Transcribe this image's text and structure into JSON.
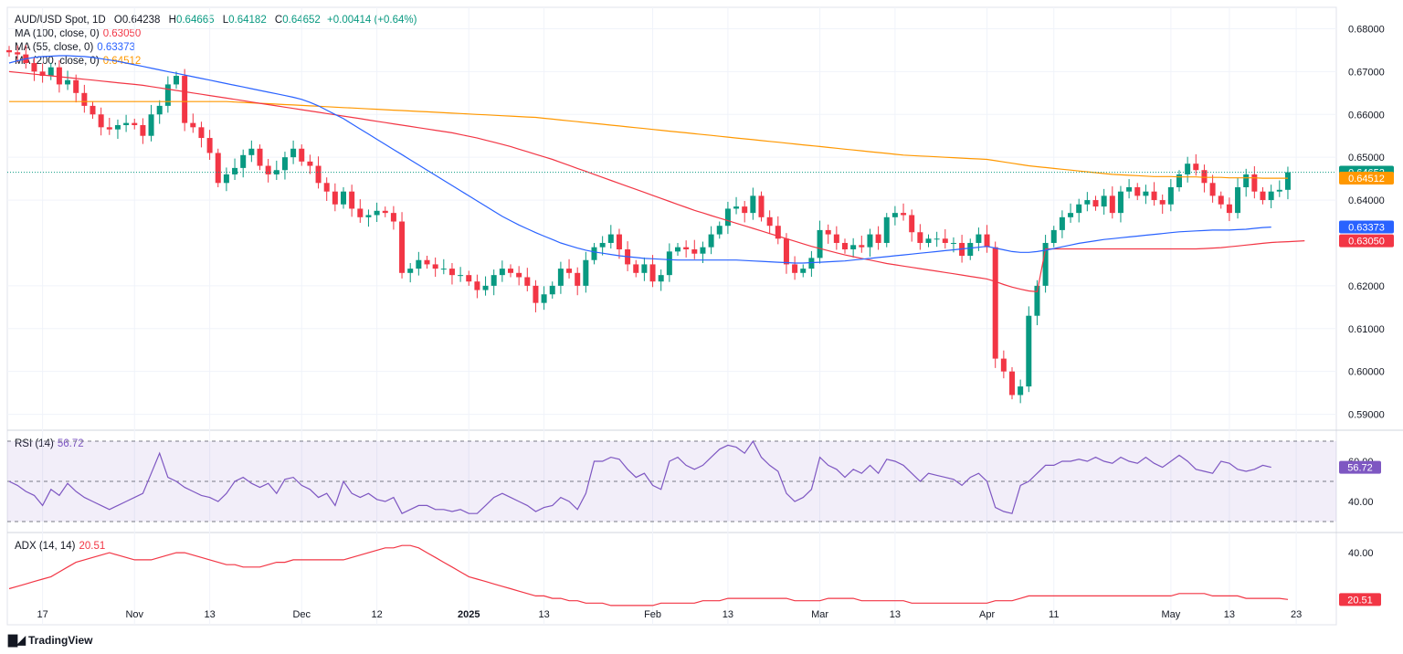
{
  "header": {
    "symbol": "AUD/USD Spot, 1D",
    "open_label": "O",
    "open": "0.64238",
    "high_label": "H",
    "high": "0.64665",
    "low_label": "L",
    "low": "0.64182",
    "close_label": "C",
    "close": "0.64652",
    "change": "+0.00414 (+0.64%)"
  },
  "ma100": {
    "label": "MA (100, close, 0)",
    "value": "0.63050",
    "color": "#f23645"
  },
  "ma55": {
    "label": "MA (55, close, 0)",
    "value": "0.63373",
    "color": "#2962ff"
  },
  "ma200": {
    "label": "MA (200, close, 0)",
    "value": "0.64512",
    "color": "#ff9800"
  },
  "rsi": {
    "label": "RSI (14)",
    "value": "56.72",
    "color": "#7e57c2"
  },
  "adx": {
    "label": "ADX (14, 14)",
    "value": "20.51",
    "color": "#f23645"
  },
  "brand": "TradingView",
  "colors": {
    "up": "#089981",
    "down": "#f23645",
    "grid": "#f0f3fa"
  },
  "chart_data": [
    {
      "type": "candlestick",
      "title": "AUD/USD Spot, 1D",
      "ylim": [
        0.5865,
        0.685
      ],
      "y_ticks": [
        "0.68000",
        "0.67000",
        "0.66000",
        "0.65000",
        "0.64000",
        "0.62000",
        "0.61000",
        "0.60000",
        "0.59000"
      ],
      "price_badges": [
        "0.64652",
        "0.64512",
        "0.63373",
        "0.63050"
      ],
      "x_ticks": [
        {
          "label": "17",
          "idx": 4
        },
        {
          "label": "Nov",
          "idx": 15
        },
        {
          "label": "13",
          "idx": 24
        },
        {
          "label": "Dec",
          "idx": 35
        },
        {
          "label": "12",
          "idx": 44
        },
        {
          "label": "2025",
          "idx": 55
        },
        {
          "label": "13",
          "idx": 64
        },
        {
          "label": "Feb",
          "idx": 77
        },
        {
          "label": "13",
          "idx": 86
        },
        {
          "label": "Mar",
          "idx": 97
        },
        {
          "label": "13",
          "idx": 106
        },
        {
          "label": "Apr",
          "idx": 117
        },
        {
          "label": "11",
          "idx": 125
        },
        {
          "label": "May",
          "idx": 139
        },
        {
          "label": "13",
          "idx": 146
        },
        {
          "label": "23",
          "idx": 154
        }
      ],
      "close": [
        0.6745,
        0.674,
        0.672,
        0.67,
        0.669,
        0.671,
        0.667,
        0.668,
        0.665,
        0.662,
        0.66,
        0.657,
        0.6565,
        0.6575,
        0.658,
        0.6575,
        0.655,
        0.66,
        0.662,
        0.667,
        0.669,
        0.658,
        0.657,
        0.6545,
        0.651,
        0.644,
        0.646,
        0.6475,
        0.6505,
        0.652,
        0.648,
        0.646,
        0.647,
        0.65,
        0.652,
        0.649,
        0.648,
        0.644,
        0.642,
        0.639,
        0.642,
        0.638,
        0.636,
        0.6365,
        0.6375,
        0.637,
        0.635,
        0.623,
        0.624,
        0.626,
        0.625,
        0.624,
        0.624,
        0.6225,
        0.6225,
        0.621,
        0.619,
        0.62,
        0.6225,
        0.624,
        0.623,
        0.622,
        0.62,
        0.616,
        0.618,
        0.62,
        0.624,
        0.623,
        0.62,
        0.626,
        0.629,
        0.63,
        0.632,
        0.6285,
        0.625,
        0.623,
        0.625,
        0.621,
        0.6225,
        0.628,
        0.629,
        0.6285,
        0.6275,
        0.629,
        0.632,
        0.634,
        0.638,
        0.6385,
        0.637,
        0.641,
        0.636,
        0.634,
        0.631,
        0.625,
        0.623,
        0.624,
        0.6265,
        0.633,
        0.632,
        0.63,
        0.6285,
        0.6295,
        0.629,
        0.632,
        0.63,
        0.636,
        0.637,
        0.6365,
        0.6325,
        0.63,
        0.631,
        0.631,
        0.63,
        0.63,
        0.627,
        0.63,
        0.632,
        0.629,
        0.603,
        0.6,
        0.5945,
        0.5965,
        0.613,
        0.62,
        0.63,
        0.633,
        0.636,
        0.637,
        0.639,
        0.64,
        0.6385,
        0.641,
        0.637,
        0.642,
        0.643,
        0.641,
        0.642,
        0.64,
        0.639,
        0.643,
        0.646,
        0.6485,
        0.647,
        0.644,
        0.641,
        0.639,
        0.637,
        0.643,
        0.646,
        0.642,
        0.64,
        0.642,
        0.6424,
        0.6465
      ],
      "rsi_levels": [
        70,
        50,
        30
      ],
      "rsi_ticks": [
        "60.00",
        "40.00"
      ],
      "rsi": [
        50,
        48,
        45,
        43,
        38,
        46,
        43,
        49,
        45,
        42,
        40,
        38,
        36,
        38,
        40,
        42,
        44,
        54,
        64,
        52,
        50,
        47,
        45,
        43,
        42,
        40,
        44,
        50,
        52,
        49,
        47,
        49,
        44,
        51,
        52,
        48,
        46,
        42,
        44,
        38,
        50,
        44,
        42,
        44,
        41,
        40,
        42,
        34,
        36,
        38,
        38,
        36,
        36,
        35,
        36,
        34,
        34,
        38,
        42,
        44,
        42,
        40,
        38,
        35,
        37,
        38,
        42,
        40,
        36,
        44,
        60,
        60,
        62,
        61,
        56,
        52,
        54,
        48,
        46,
        60,
        62,
        58,
        56,
        58,
        62,
        66,
        68,
        67,
        64,
        70,
        62,
        58,
        55,
        44,
        40,
        42,
        46,
        62,
        58,
        56,
        52,
        56,
        54,
        58,
        54,
        61,
        60,
        58,
        54,
        50,
        54,
        53,
        52,
        51,
        48,
        52,
        54,
        50,
        37,
        35,
        34,
        48,
        50,
        54,
        58,
        58,
        60,
        60,
        61,
        60,
        62,
        60,
        59,
        62,
        60,
        59,
        62,
        59,
        57,
        60,
        63,
        60,
        56,
        55,
        54,
        60,
        59,
        56,
        55,
        56,
        58,
        57
      ],
      "adx_ticks": [
        "40.00"
      ],
      "adx": [
        25,
        26,
        27,
        28,
        29,
        30,
        32,
        34,
        36,
        37,
        38,
        39,
        40,
        39,
        38,
        37,
        37,
        37,
        38,
        39,
        40,
        40,
        39,
        38,
        37,
        36,
        35,
        35,
        34,
        34,
        34,
        35,
        36,
        36,
        37,
        37,
        37,
        37,
        37,
        37,
        37,
        38,
        39,
        40,
        41,
        42,
        42,
        43,
        43,
        42,
        40,
        38,
        36,
        34,
        32,
        30,
        29,
        28,
        27,
        26,
        25,
        24,
        23,
        22,
        22,
        21,
        21,
        20,
        20,
        19,
        19,
        19,
        18,
        18,
        18,
        18,
        18,
        18,
        19,
        19,
        19,
        19,
        19,
        20,
        20,
        20,
        21,
        21,
        21,
        21,
        21,
        21,
        21,
        21,
        20,
        20,
        20,
        20,
        21,
        21,
        21,
        21,
        20,
        20,
        20,
        20,
        20,
        20,
        19,
        19,
        19,
        19,
        19,
        19,
        19,
        19,
        19,
        19,
        20,
        20,
        20,
        21,
        22,
        22,
        22,
        22,
        22,
        22,
        22,
        22,
        22,
        22,
        22,
        22,
        22,
        22,
        22,
        22,
        22,
        22,
        23,
        23,
        23,
        23,
        22,
        22,
        22,
        22,
        21,
        21,
        21,
        21,
        21,
        20.51
      ],
      "ma100": [
        0.67,
        0.6698,
        0.6696,
        0.6694,
        0.6692,
        0.669,
        0.6688,
        0.6686,
        0.6684,
        0.6682,
        0.668,
        0.6678,
        0.6676,
        0.6674,
        0.6672,
        0.667,
        0.6668,
        0.6665,
        0.6662,
        0.6659,
        0.6656,
        0.6653,
        0.665,
        0.6647,
        0.6644,
        0.6641,
        0.6638,
        0.6635,
        0.6632,
        0.6629,
        0.6626,
        0.6623,
        0.662,
        0.6617,
        0.6614,
        0.6611,
        0.6608,
        0.6605,
        0.6602,
        0.6599,
        0.6596,
        0.6593,
        0.659,
        0.6587,
        0.6584,
        0.6581,
        0.6578,
        0.6575,
        0.6572,
        0.6569,
        0.6566,
        0.6563,
        0.656,
        0.6557,
        0.6553,
        0.6549,
        0.6545,
        0.654,
        0.6535,
        0.653,
        0.6525,
        0.6519,
        0.6513,
        0.6507,
        0.6501,
        0.6495,
        0.6488,
        0.6481,
        0.6474,
        0.6467,
        0.646,
        0.6453,
        0.6446,
        0.6439,
        0.6432,
        0.6425,
        0.6418,
        0.6411,
        0.6404,
        0.6397,
        0.639,
        0.6383,
        0.6376,
        0.637,
        0.6364,
        0.6358,
        0.6352,
        0.6346,
        0.634,
        0.6334,
        0.6328,
        0.6322,
        0.6316,
        0.631,
        0.6304,
        0.6298,
        0.6292,
        0.6287,
        0.6282,
        0.6277,
        0.6272,
        0.6268,
        0.6264,
        0.626,
        0.6256,
        0.6252,
        0.6249,
        0.6246,
        0.6243,
        0.624,
        0.6237,
        0.6234,
        0.6231,
        0.6228,
        0.6225,
        0.6222,
        0.6219,
        0.6216,
        0.621,
        0.6203,
        0.6197,
        0.6192,
        0.6188,
        0.6186,
        0.6286,
        0.6286,
        0.6286,
        0.6286,
        0.6286,
        0.6286,
        0.6286,
        0.6286,
        0.6286,
        0.6286,
        0.6286,
        0.6286,
        0.6286,
        0.6286,
        0.6286,
        0.6286,
        0.6286,
        0.6286,
        0.6286,
        0.6287,
        0.6288,
        0.6289,
        0.6291,
        0.6293,
        0.6295,
        0.6297,
        0.6299,
        0.6301,
        0.6302,
        0.6303,
        0.6304,
        0.6305
      ],
      "ma55": [
        0.672,
        0.6725,
        0.673,
        0.6733,
        0.6735,
        0.6736,
        0.6737,
        0.6737,
        0.6736,
        0.6735,
        0.6733,
        0.673,
        0.6727,
        0.6724,
        0.672,
        0.6716,
        0.6712,
        0.6708,
        0.6704,
        0.67,
        0.6696,
        0.6692,
        0.6688,
        0.6684,
        0.668,
        0.6676,
        0.6672,
        0.6668,
        0.6664,
        0.666,
        0.6656,
        0.6652,
        0.6648,
        0.6644,
        0.664,
        0.6635,
        0.6628,
        0.662,
        0.661,
        0.66,
        0.659,
        0.6578,
        0.6566,
        0.6554,
        0.6542,
        0.653,
        0.6518,
        0.6506,
        0.6494,
        0.6482,
        0.647,
        0.6458,
        0.6446,
        0.6434,
        0.6422,
        0.641,
        0.6398,
        0.6386,
        0.6374,
        0.6362,
        0.6352,
        0.6342,
        0.6333,
        0.6324,
        0.6316,
        0.6308,
        0.63,
        0.6294,
        0.6288,
        0.6283,
        0.6279,
        0.6276,
        0.6273,
        0.627,
        0.6268,
        0.6266,
        0.6264,
        0.6263,
        0.6262,
        0.6261,
        0.626,
        0.626,
        0.626,
        0.626,
        0.626,
        0.626,
        0.626,
        0.626,
        0.6259,
        0.6258,
        0.6257,
        0.6256,
        0.6255,
        0.6254,
        0.6253,
        0.6253,
        0.6254,
        0.6255,
        0.6256,
        0.6257,
        0.6258,
        0.626,
        0.6262,
        0.6264,
        0.6266,
        0.6268,
        0.627,
        0.6272,
        0.6274,
        0.6276,
        0.6278,
        0.628,
        0.6282,
        0.6284,
        0.6286,
        0.6288,
        0.629,
        0.6292,
        0.6288,
        0.6284,
        0.628,
        0.6278,
        0.6278,
        0.628,
        0.6283,
        0.6287,
        0.6291,
        0.6295,
        0.6299,
        0.6302,
        0.6305,
        0.6308,
        0.631,
        0.6312,
        0.6314,
        0.6316,
        0.6318,
        0.632,
        0.6322,
        0.6324,
        0.6326,
        0.6327,
        0.6328,
        0.6329,
        0.633,
        0.633,
        0.633,
        0.6331,
        0.6332,
        0.6334,
        0.6336,
        0.6337
      ],
      "ma200": [
        0.663,
        0.663,
        0.663,
        0.663,
        0.663,
        0.663,
        0.663,
        0.663,
        0.663,
        0.663,
        0.663,
        0.663,
        0.663,
        0.663,
        0.663,
        0.663,
        0.663,
        0.663,
        0.663,
        0.663,
        0.663,
        0.663,
        0.663,
        0.663,
        0.663,
        0.663,
        0.663,
        0.6629,
        0.6628,
        0.6627,
        0.6626,
        0.6625,
        0.6624,
        0.6623,
        0.6622,
        0.6621,
        0.662,
        0.6619,
        0.6618,
        0.6617,
        0.6616,
        0.6615,
        0.6614,
        0.6613,
        0.6612,
        0.6611,
        0.661,
        0.6609,
        0.6608,
        0.6607,
        0.6606,
        0.6605,
        0.6604,
        0.6603,
        0.6602,
        0.6601,
        0.66,
        0.6599,
        0.6598,
        0.6597,
        0.6596,
        0.6595,
        0.6594,
        0.6593,
        0.6591,
        0.6589,
        0.6587,
        0.6585,
        0.6583,
        0.6581,
        0.6579,
        0.6577,
        0.6575,
        0.6573,
        0.6571,
        0.6569,
        0.6567,
        0.6565,
        0.6563,
        0.6561,
        0.6559,
        0.6557,
        0.6555,
        0.6553,
        0.6551,
        0.6549,
        0.6547,
        0.6545,
        0.6543,
        0.6541,
        0.6539,
        0.6537,
        0.6535,
        0.6533,
        0.6531,
        0.6529,
        0.6527,
        0.6525,
        0.6523,
        0.6521,
        0.6519,
        0.6517,
        0.6515,
        0.6513,
        0.6511,
        0.6509,
        0.6507,
        0.6505,
        0.6504,
        0.6503,
        0.6502,
        0.6501,
        0.65,
        0.6499,
        0.6498,
        0.6497,
        0.6496,
        0.6495,
        0.6492,
        0.6489,
        0.6486,
        0.6483,
        0.648,
        0.6478,
        0.6476,
        0.6474,
        0.6472,
        0.647,
        0.6468,
        0.6466,
        0.6464,
        0.6462,
        0.646,
        0.6459,
        0.6458,
        0.6457,
        0.6456,
        0.6455,
        0.6455,
        0.6455,
        0.6454,
        0.6454,
        0.6454,
        0.6453,
        0.6453,
        0.6453,
        0.6452,
        0.6452,
        0.6452,
        0.6452,
        0.6451,
        0.6451,
        0.6451,
        0.6451
      ]
    }
  ]
}
